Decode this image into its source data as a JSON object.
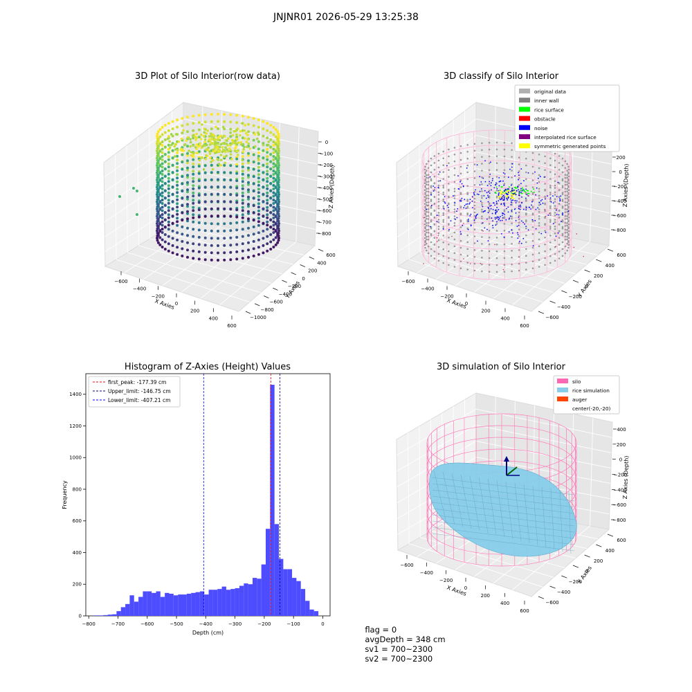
{
  "figure_title": "JNJNR01 2026-05-29 13:25:38",
  "footer": {
    "flag": "flag = 0",
    "avg_depth": "avgDepth = 348 cm",
    "sv1": "sv1 = 700~2300",
    "sv2": "sv2 = 700~2300"
  },
  "chart_data": [
    {
      "type": "scatter",
      "title": "3D Plot of Silo Interior(row data)",
      "xlabel": "X Axies",
      "ylabel": "Y Axies",
      "zlabel": "Z Axies (Depth)",
      "x_ticks": [
        "−600",
        "−400",
        "−200",
        "0",
        "200",
        "400",
        "600"
      ],
      "y_ticks": [
        "−1000",
        "−800",
        "−600",
        "−400",
        "−200",
        "0",
        "200",
        "400",
        "600"
      ],
      "z_ticks": [
        "0",
        "−100",
        "−200",
        "−300",
        "−400",
        "−500",
        "−600",
        "−700",
        "−800"
      ],
      "colormap": "viridis"
    },
    {
      "type": "scatter",
      "title": "3D classify of Silo Interior",
      "xlabel": "X Axies",
      "ylabel": "Y Axies",
      "zlabel": "Z Axies (Depth)",
      "x_ticks": [
        "−600",
        "−400",
        "−200",
        "0",
        "200",
        "400",
        "600"
      ],
      "y_ticks": [
        "−600",
        "−400",
        "−200",
        "0",
        "200",
        "400",
        "600"
      ],
      "z_ticks": [
        "200",
        "0",
        "−200",
        "−400",
        "−600",
        "−800"
      ],
      "legend_position": "top-right",
      "legend": [
        {
          "label": "original data",
          "color": "#b0b0b0"
        },
        {
          "label": "inner wall",
          "color": "#808080"
        },
        {
          "label": "rice surface",
          "color": "#00ff00"
        },
        {
          "label": "obstacle",
          "color": "#ff0000"
        },
        {
          "label": "noise",
          "color": "#0000ff"
        },
        {
          "label": "interpolated rice surface",
          "color": "#800080"
        },
        {
          "label": "symmetric generated points",
          "color": "#ffff00"
        }
      ]
    },
    {
      "type": "bar",
      "title": "Histogram of Z-Axies (Height) Values",
      "xlabel": "Depth (cm)",
      "ylabel": "Frequency",
      "xlim": [
        -810,
        25
      ],
      "ylim": [
        0,
        1530
      ],
      "x_ticks": [
        -800,
        -700,
        -600,
        -500,
        -400,
        -300,
        -200,
        -100,
        0
      ],
      "y_ticks": [
        0,
        200,
        400,
        600,
        800,
        1000,
        1200,
        1400
      ],
      "bar_color": "#4d4dff",
      "bin_width": 15,
      "bins_start": [
        -780,
        -765,
        -750,
        -735,
        -720,
        -705,
        -690,
        -675,
        -660,
        -645,
        -630,
        -615,
        -600,
        -585,
        -570,
        -555,
        -540,
        -525,
        -510,
        -495,
        -480,
        -465,
        -450,
        -435,
        -420,
        -405,
        -390,
        -375,
        -360,
        -345,
        -330,
        -315,
        -300,
        -285,
        -270,
        -255,
        -240,
        -225,
        -210,
        -195,
        -180,
        -165,
        -150,
        -135,
        -120,
        -105,
        -90,
        -75,
        -60,
        -45,
        -30,
        -15
      ],
      "values": [
        3,
        3,
        5,
        8,
        10,
        30,
        55,
        75,
        130,
        90,
        120,
        155,
        155,
        145,
        155,
        120,
        145,
        140,
        130,
        135,
        135,
        140,
        145,
        150,
        155,
        135,
        165,
        165,
        170,
        185,
        165,
        170,
        175,
        190,
        205,
        200,
        240,
        235,
        325,
        550,
        1460,
        580,
        360,
        295,
        295,
        240,
        220,
        170,
        95,
        40,
        30,
        0
      ],
      "legend_position": "top-left",
      "lines": [
        {
          "label": "first_peak: -177.39 cm",
          "x": -177.39,
          "color": "#ff0000"
        },
        {
          "label": "Upper_limit: -146.75 cm",
          "x": -146.75,
          "color": "#00008b"
        },
        {
          "label": "Lower_limit: -407.21 cm",
          "x": -407.21,
          "color": "#0000ff"
        }
      ]
    },
    {
      "type": "surface",
      "title": "3D simulation of Silo Interior",
      "xlabel": "X Axies",
      "ylabel": "Y Axies",
      "zlabel": "Z Axies (Depth)",
      "x_ticks": [
        "−600",
        "−400",
        "−200",
        "0",
        "200",
        "400",
        "600"
      ],
      "y_ticks": [
        "−600",
        "−400",
        "−200",
        "0",
        "200",
        "400",
        "600"
      ],
      "z_ticks": [
        "400",
        "200",
        "0",
        "−200",
        "−400",
        "−600",
        "−800"
      ],
      "legend_position": "top-right",
      "legend": [
        {
          "label": "silo",
          "color": "#ff69b4"
        },
        {
          "label": "rice simulation",
          "color": "#87ceeb"
        },
        {
          "label": "auger",
          "color": "#ff4500"
        },
        {
          "label": "center(-20,-20)",
          "color": ""
        }
      ]
    }
  ]
}
